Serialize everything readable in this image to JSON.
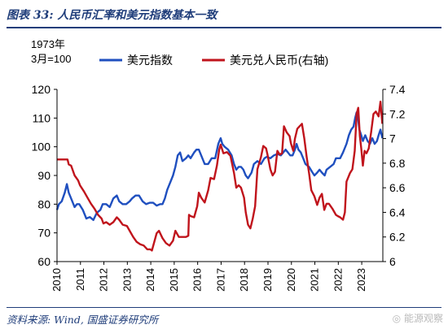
{
  "caption": {
    "title": "图表 33:  人民币汇率和美元指数基本一致",
    "source": "资料来源:  Wind,  国盛证券研究所",
    "watermark": "能源观察"
  },
  "colors": {
    "frame": "#1f3d7a",
    "dollar_index": "#1f4fbf",
    "usdcny": "#c0141c"
  },
  "icons": {
    "watermark": "wechat-icon"
  },
  "chart_data": {
    "type": "line",
    "left_unit": [
      "1973年",
      "3月=100"
    ],
    "y_left": {
      "lim": [
        60,
        120
      ],
      "ticks": [
        60,
        70,
        80,
        90,
        100,
        110,
        120
      ]
    },
    "y_right": {
      "lim": [
        6.0,
        7.4
      ],
      "ticks": [
        6,
        6.2,
        6.4,
        6.6,
        6.8,
        7,
        7.2,
        7.4
      ]
    },
    "x": {
      "lim": [
        2010,
        2023.9
      ],
      "ticks": [
        "2010",
        "2011",
        "2012",
        "2013",
        "2014",
        "2015",
        "2016",
        "2017",
        "2018",
        "2019",
        "2020",
        "2021",
        "2022",
        "2023"
      ]
    },
    "legend_position": "top",
    "grid": false,
    "series": [
      {
        "name": "美元指数",
        "axis": "left",
        "points": [
          [
            2010.0,
            78
          ],
          [
            2010.08,
            80
          ],
          [
            2010.2,
            81
          ],
          [
            2010.33,
            84
          ],
          [
            2010.42,
            87
          ],
          [
            2010.5,
            84
          ],
          [
            2010.6,
            82
          ],
          [
            2010.75,
            79
          ],
          [
            2010.85,
            80
          ],
          [
            2010.95,
            80
          ],
          [
            2011.1,
            78
          ],
          [
            2011.25,
            75
          ],
          [
            2011.4,
            75.5
          ],
          [
            2011.55,
            74.5
          ],
          [
            2011.7,
            77
          ],
          [
            2011.85,
            78
          ],
          [
            2011.95,
            80
          ],
          [
            2012.1,
            80
          ],
          [
            2012.25,
            79
          ],
          [
            2012.4,
            82
          ],
          [
            2012.55,
            83
          ],
          [
            2012.65,
            81
          ],
          [
            2012.8,
            80
          ],
          [
            2012.95,
            80
          ],
          [
            2013.1,
            81
          ],
          [
            2013.2,
            82
          ],
          [
            2013.35,
            83
          ],
          [
            2013.5,
            83
          ],
          [
            2013.65,
            81
          ],
          [
            2013.8,
            80
          ],
          [
            2013.95,
            80.5
          ],
          [
            2014.1,
            80.5
          ],
          [
            2014.25,
            79.5
          ],
          [
            2014.4,
            80
          ],
          [
            2014.5,
            80
          ],
          [
            2014.6,
            82
          ],
          [
            2014.7,
            85
          ],
          [
            2014.85,
            88
          ],
          [
            2014.95,
            90
          ],
          [
            2015.05,
            93
          ],
          [
            2015.15,
            97
          ],
          [
            2015.25,
            98
          ],
          [
            2015.35,
            95
          ],
          [
            2015.5,
            96
          ],
          [
            2015.6,
            97
          ],
          [
            2015.7,
            96
          ],
          [
            2015.85,
            98
          ],
          [
            2015.95,
            99
          ],
          [
            2016.05,
            99
          ],
          [
            2016.15,
            97
          ],
          [
            2016.3,
            94
          ],
          [
            2016.45,
            94
          ],
          [
            2016.6,
            96
          ],
          [
            2016.75,
            96
          ],
          [
            2016.88,
            101
          ],
          [
            2016.98,
            103
          ],
          [
            2017.05,
            101
          ],
          [
            2017.15,
            100
          ],
          [
            2017.3,
            99
          ],
          [
            2017.45,
            97
          ],
          [
            2017.55,
            94
          ],
          [
            2017.65,
            92
          ],
          [
            2017.75,
            93
          ],
          [
            2017.85,
            93
          ],
          [
            2017.95,
            92
          ],
          [
            2018.05,
            90
          ],
          [
            2018.15,
            89
          ],
          [
            2018.3,
            91
          ],
          [
            2018.4,
            94
          ],
          [
            2018.55,
            95
          ],
          [
            2018.7,
            94
          ],
          [
            2018.85,
            96
          ],
          [
            2018.95,
            96.5
          ],
          [
            2019.1,
            96
          ],
          [
            2019.25,
            97
          ],
          [
            2019.4,
            97.5
          ],
          [
            2019.55,
            97
          ],
          [
            2019.65,
            98
          ],
          [
            2019.75,
            99
          ],
          [
            2019.85,
            98
          ],
          [
            2019.95,
            97
          ],
          [
            2020.05,
            97
          ],
          [
            2020.15,
            99
          ],
          [
            2020.22,
            101
          ],
          [
            2020.3,
            99
          ],
          [
            2020.4,
            98
          ],
          [
            2020.5,
            96
          ],
          [
            2020.6,
            94
          ],
          [
            2020.75,
            93
          ],
          [
            2020.9,
            91
          ],
          [
            2020.98,
            90
          ],
          [
            2021.1,
            91
          ],
          [
            2021.2,
            92
          ],
          [
            2021.3,
            91
          ],
          [
            2021.42,
            90
          ],
          [
            2021.5,
            92
          ],
          [
            2021.65,
            93
          ],
          [
            2021.8,
            94
          ],
          [
            2021.9,
            96
          ],
          [
            2021.98,
            96
          ],
          [
            2022.08,
            96
          ],
          [
            2022.2,
            98
          ],
          [
            2022.35,
            101
          ],
          [
            2022.45,
            104
          ],
          [
            2022.55,
            106
          ],
          [
            2022.65,
            107
          ],
          [
            2022.72,
            110
          ],
          [
            2022.78,
            112
          ],
          [
            2022.84,
            110
          ],
          [
            2022.9,
            106
          ],
          [
            2022.98,
            104
          ],
          [
            2023.05,
            102
          ],
          [
            2023.15,
            104
          ],
          [
            2023.25,
            102
          ],
          [
            2023.35,
            101
          ],
          [
            2023.45,
            103
          ],
          [
            2023.55,
            101
          ],
          [
            2023.65,
            102
          ],
          [
            2023.72,
            104
          ],
          [
            2023.8,
            106
          ],
          [
            2023.88,
            103
          ]
        ]
      },
      {
        "name": "美元兑人民币(右轴)",
        "axis": "right",
        "points": [
          [
            2010.0,
            6.83
          ],
          [
            2010.25,
            6.83
          ],
          [
            2010.45,
            6.83
          ],
          [
            2010.5,
            6.79
          ],
          [
            2010.6,
            6.78
          ],
          [
            2010.75,
            6.7
          ],
          [
            2010.9,
            6.66
          ],
          [
            2010.98,
            6.62
          ],
          [
            2011.15,
            6.57
          ],
          [
            2011.3,
            6.52
          ],
          [
            2011.45,
            6.47
          ],
          [
            2011.6,
            6.43
          ],
          [
            2011.75,
            6.38
          ],
          [
            2011.9,
            6.35
          ],
          [
            2011.98,
            6.31
          ],
          [
            2012.1,
            6.32
          ],
          [
            2012.25,
            6.3
          ],
          [
            2012.4,
            6.32
          ],
          [
            2012.55,
            6.36
          ],
          [
            2012.65,
            6.34
          ],
          [
            2012.8,
            6.3
          ],
          [
            2012.98,
            6.29
          ],
          [
            2013.1,
            6.25
          ],
          [
            2013.25,
            6.2
          ],
          [
            2013.4,
            6.16
          ],
          [
            2013.55,
            6.14
          ],
          [
            2013.7,
            6.13
          ],
          [
            2013.85,
            6.1
          ],
          [
            2013.98,
            6.1
          ],
          [
            2014.05,
            6.09
          ],
          [
            2014.15,
            6.16
          ],
          [
            2014.25,
            6.23
          ],
          [
            2014.35,
            6.25
          ],
          [
            2014.5,
            6.19
          ],
          [
            2014.65,
            6.15
          ],
          [
            2014.8,
            6.13
          ],
          [
            2014.95,
            6.17
          ],
          [
            2015.05,
            6.25
          ],
          [
            2015.2,
            6.2
          ],
          [
            2015.35,
            6.2
          ],
          [
            2015.5,
            6.2
          ],
          [
            2015.6,
            6.21
          ],
          [
            2015.63,
            6.38
          ],
          [
            2015.7,
            6.37
          ],
          [
            2015.85,
            6.36
          ],
          [
            2015.98,
            6.45
          ],
          [
            2016.05,
            6.56
          ],
          [
            2016.15,
            6.52
          ],
          [
            2016.3,
            6.48
          ],
          [
            2016.45,
            6.58
          ],
          [
            2016.55,
            6.68
          ],
          [
            2016.7,
            6.67
          ],
          [
            2016.82,
            6.78
          ],
          [
            2016.92,
            6.91
          ],
          [
            2016.98,
            6.95
          ],
          [
            2017.1,
            6.88
          ],
          [
            2017.25,
            6.89
          ],
          [
            2017.4,
            6.86
          ],
          [
            2017.55,
            6.72
          ],
          [
            2017.65,
            6.6
          ],
          [
            2017.75,
            6.62
          ],
          [
            2017.85,
            6.6
          ],
          [
            2017.98,
            6.52
          ],
          [
            2018.05,
            6.4
          ],
          [
            2018.15,
            6.3
          ],
          [
            2018.25,
            6.27
          ],
          [
            2018.35,
            6.35
          ],
          [
            2018.45,
            6.45
          ],
          [
            2018.55,
            6.75
          ],
          [
            2018.7,
            6.85
          ],
          [
            2018.8,
            6.94
          ],
          [
            2018.92,
            6.92
          ],
          [
            2018.98,
            6.87
          ],
          [
            2019.1,
            6.75
          ],
          [
            2019.2,
            6.7
          ],
          [
            2019.3,
            6.73
          ],
          [
            2019.4,
            6.9
          ],
          [
            2019.5,
            6.87
          ],
          [
            2019.6,
            6.88
          ],
          [
            2019.68,
            7.1
          ],
          [
            2019.8,
            7.05
          ],
          [
            2019.92,
            7.02
          ],
          [
            2019.98,
            6.96
          ],
          [
            2020.08,
            6.9
          ],
          [
            2020.15,
            7.0
          ],
          [
            2020.25,
            7.08
          ],
          [
            2020.35,
            7.1
          ],
          [
            2020.45,
            7.12
          ],
          [
            2020.55,
            7.0
          ],
          [
            2020.65,
            6.85
          ],
          [
            2020.75,
            6.72
          ],
          [
            2020.85,
            6.58
          ],
          [
            2020.98,
            6.53
          ],
          [
            2021.1,
            6.46
          ],
          [
            2021.2,
            6.52
          ],
          [
            2021.3,
            6.55
          ],
          [
            2021.4,
            6.42
          ],
          [
            2021.5,
            6.47
          ],
          [
            2021.6,
            6.47
          ],
          [
            2021.75,
            6.43
          ],
          [
            2021.9,
            6.38
          ],
          [
            2021.98,
            6.37
          ],
          [
            2022.08,
            6.36
          ],
          [
            2022.2,
            6.34
          ],
          [
            2022.28,
            6.4
          ],
          [
            2022.35,
            6.65
          ],
          [
            2022.5,
            6.72
          ],
          [
            2022.6,
            6.75
          ],
          [
            2022.7,
            6.9
          ],
          [
            2022.78,
            7.2
          ],
          [
            2022.85,
            7.25
          ],
          [
            2022.92,
            7.02
          ],
          [
            2022.98,
            6.92
          ],
          [
            2023.05,
            6.78
          ],
          [
            2023.12,
            6.9
          ],
          [
            2023.2,
            6.88
          ],
          [
            2023.3,
            6.92
          ],
          [
            2023.4,
            7.05
          ],
          [
            2023.5,
            7.2
          ],
          [
            2023.6,
            7.22
          ],
          [
            2023.72,
            7.18
          ],
          [
            2023.8,
            7.3
          ],
          [
            2023.88,
            7.12
          ]
        ]
      }
    ]
  }
}
